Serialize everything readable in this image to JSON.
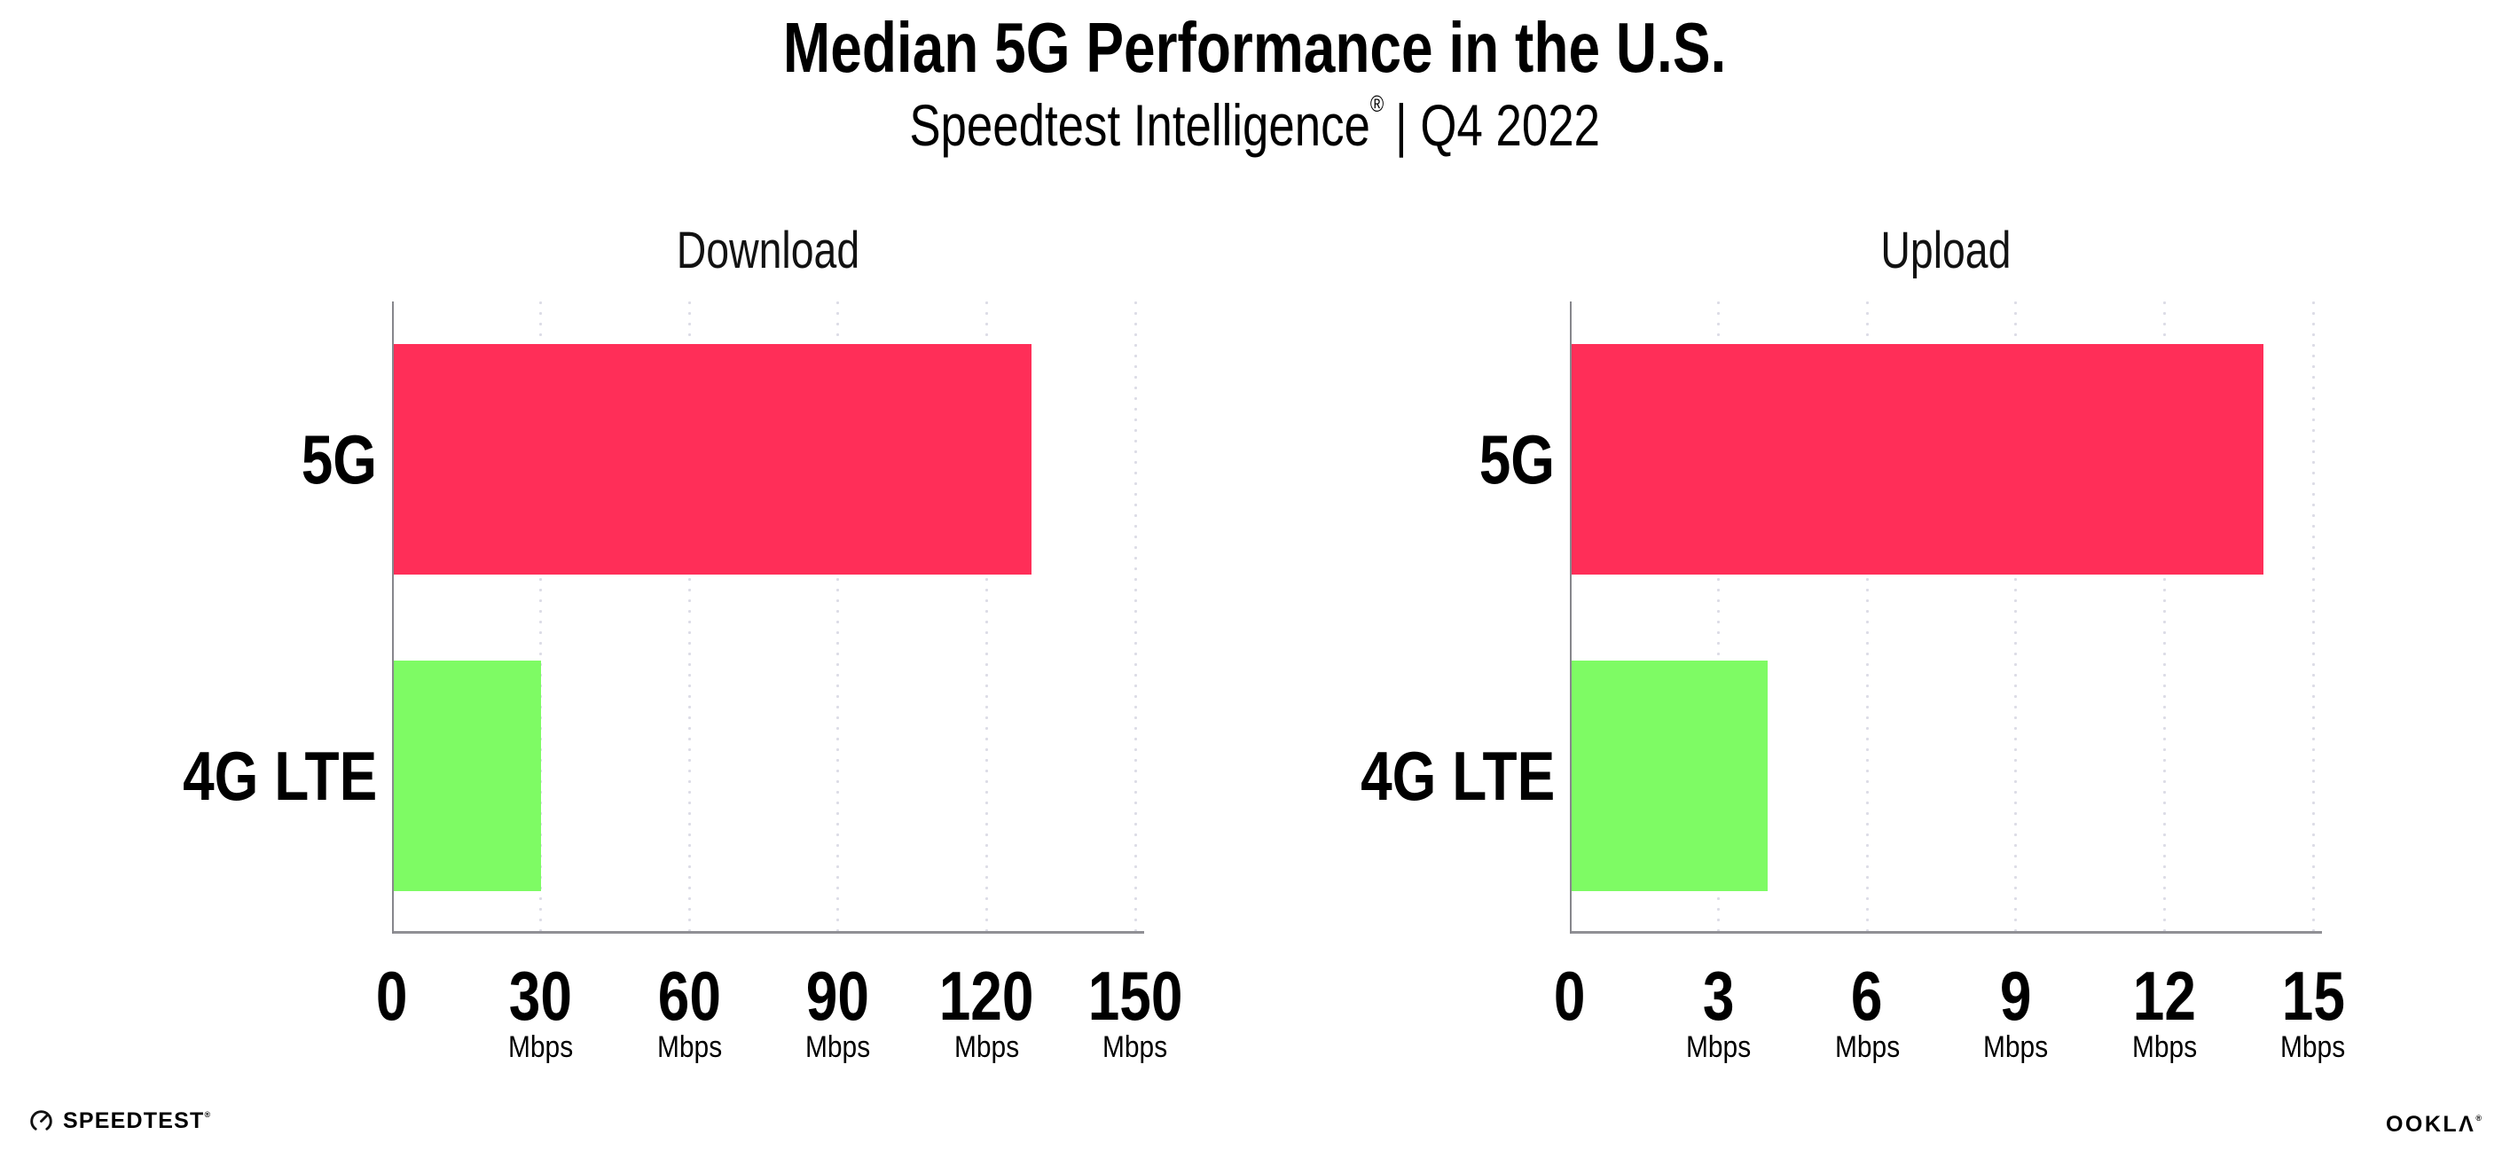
{
  "header": {
    "title": "Median 5G Performance in the U.S.",
    "subtitle_brand": "Speedtest Intelligence",
    "subtitle_reg": "®",
    "subtitle_rest": "| Q4 2022"
  },
  "chart_data": [
    {
      "type": "bar",
      "orientation": "horizontal",
      "title": "Download",
      "categories": [
        "5G",
        "4G LTE"
      ],
      "values": [
        129,
        30
      ],
      "unit": "Mbps",
      "xlim": [
        0,
        150
      ],
      "xticks": [
        0,
        30,
        60,
        90,
        120,
        150
      ],
      "tick_unit_label": "Mbps",
      "grid": "vertical-dotted",
      "legend": "none",
      "bar_colors": [
        "#FF2E58",
        "#7EFB64"
      ]
    },
    {
      "type": "bar",
      "orientation": "horizontal",
      "title": "Upload",
      "categories": [
        "5G",
        "4G LTE"
      ],
      "values": [
        14,
        4
      ],
      "unit": "Mbps",
      "xlim": [
        0,
        15
      ],
      "xticks": [
        0,
        3,
        6,
        9,
        12,
        15
      ],
      "tick_unit_label": "Mbps",
      "grid": "vertical-dotted",
      "legend": "none",
      "bar_colors": [
        "#FF2E58",
        "#7EFB64"
      ]
    }
  ],
  "colors": {
    "bar_5g": "#FF2E58",
    "bar_4g_lte": "#7EFB64",
    "axis": "#909095",
    "gridline": "#DCDCE6",
    "text": "#000000"
  },
  "footer": {
    "speedtest_icon": "gauge-icon",
    "speedtest_label": "SPEEDTEST",
    "speedtest_mark": "®",
    "ookla_label": "OOKLΛ",
    "ookla_mark": "®"
  }
}
